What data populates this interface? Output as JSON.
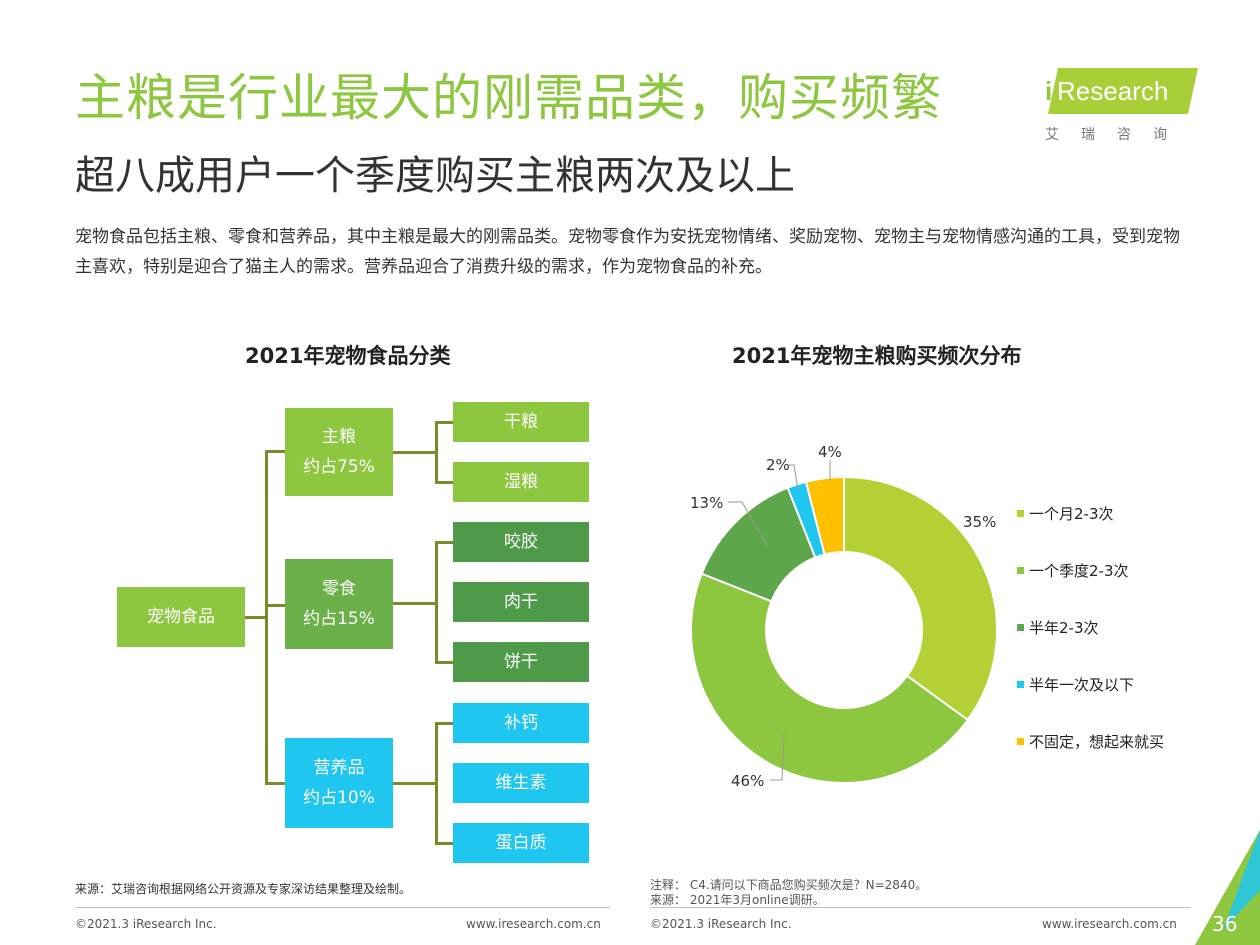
{
  "header": {
    "title": "主粮是行业最大的刚需品类，购买频繁",
    "subtitle": "超八成用户一个季度购买主粮两次及以上",
    "description": "宠物食品包括主粮、零食和营养品，其中主粮是最大的刚需品类。宠物零食作为安抚宠物情绪、奖励宠物、宠物主与宠物情感沟通的工具，受到宠物主喜欢，特别是迎合了猫主人的需求。营养品迎合了消费升级的需求，作为宠物食品的补充。"
  },
  "logo": {
    "i": "i",
    "name": "Research",
    "cn": "艾瑞咨询"
  },
  "tree": {
    "title": "2021年宠物食品分类",
    "root": "宠物食品",
    "categories": [
      {
        "name": "主粮",
        "share": "约占75%",
        "color": "#8dc63f",
        "items": [
          "干粮",
          "湿粮"
        ]
      },
      {
        "name": "零食",
        "share": "约占15%",
        "color": "#6bb048",
        "items": [
          "咬胶",
          "肉干",
          "饼干"
        ]
      },
      {
        "name": "营养品",
        "share": "约占10%",
        "color": "#1fc6f0",
        "items": [
          "补钙",
          "维生素",
          "蛋白质"
        ]
      }
    ]
  },
  "chart_data": {
    "type": "pie",
    "title": "2021年宠物主粮购买频次分布",
    "donut": true,
    "categories": [
      "一个月2-3次",
      "一个季度2-3次",
      "半年2-3次",
      "半年一次及以下",
      "不固定，想起来就买"
    ],
    "values": [
      35,
      46,
      13,
      2,
      4
    ],
    "labels": [
      "35%",
      "46%",
      "13%",
      "2%",
      "4%"
    ],
    "colors": [
      "#b3d135",
      "#8dc63f",
      "#5ea64a",
      "#1fc6f0",
      "#ffc000"
    ],
    "legend": "right"
  },
  "footer": {
    "left_source": "来源：艾瑞咨询根据网络公开资源及专家深访结果整理及绘制。",
    "right_note": "注释： C4.请问以下商品您购买频次是？N=2840。",
    "right_source": "来源： 2021年3月online调研。",
    "copyright_left": "©2021.3 iResearch Inc.",
    "url_left": "www.iresearch.com.cn",
    "copyright_right": "©2021.3 iResearch Inc.",
    "url_right": "www.iresearch.com.cn",
    "page_number": "36"
  }
}
